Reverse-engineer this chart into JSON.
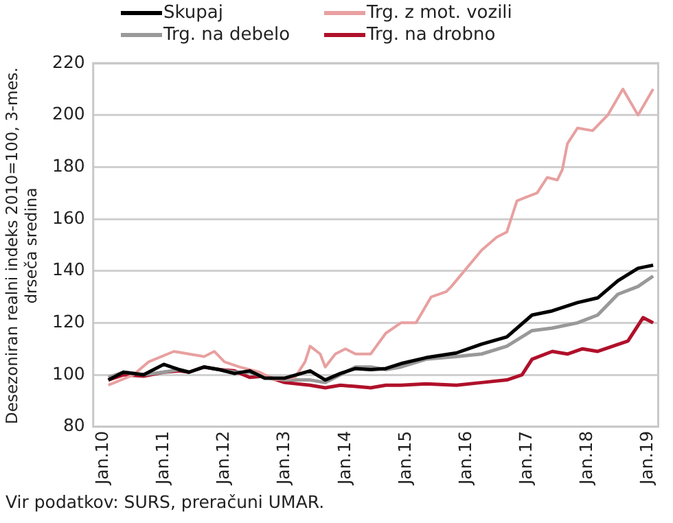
{
  "chart_data": {
    "type": "line",
    "ylabel": "Desezoniran realni indeks 2010=100, 3-mes. drseča sredina",
    "annotations": [
      "Vir podatkov: SURS, preračuni UMAR."
    ],
    "x": [
      "2010-02",
      "2010-05",
      "2010-09",
      "2011-01",
      "2011-04",
      "2011-06",
      "2011-09",
      "2011-12",
      "2012-03",
      "2012-06",
      "2012-09",
      "2013-01",
      "2013-06",
      "2013-09",
      "2013-12",
      "2014-03",
      "2014-06",
      "2014-09",
      "2014-12",
      "2015-05",
      "2015-11",
      "2016-04",
      "2016-09",
      "2017-02",
      "2017-06",
      "2017-11",
      "2018-03",
      "2018-07",
      "2018-11",
      "2019-02"
    ],
    "series": [
      {
        "name": "Skupaj",
        "color": "#000000",
        "values": [
          98,
          101,
          100,
          104,
          102,
          101,
          103,
          102,
          100.5,
          101.5,
          98.7,
          98.7,
          101.5,
          98,
          100.5,
          102.4,
          102,
          102.4,
          104.3,
          106.6,
          108.4,
          111.8,
          114.6,
          123,
          124.6,
          127.8,
          129.6,
          136.2,
          141,
          142.2
        ]
      },
      {
        "name": "Trg. z mot. vozili",
        "color": "#e8a0a0",
        "x": [
          "2010-02",
          "2010-07",
          "2010-10",
          "2011-03",
          "2011-09",
          "2011-11",
          "2012-01",
          "2012-04",
          "2012-08",
          "2012-11",
          "2013-03",
          "2013-05",
          "2013-06",
          "2013-08",
          "2013-09",
          "2013-11",
          "2014-01",
          "2014-03",
          "2014-06",
          "2014-09",
          "2014-12",
          "2015-03",
          "2015-06",
          "2015-09",
          "2015-10",
          "2016-04",
          "2016-07",
          "2016-09",
          "2016-11",
          "2017-03",
          "2017-05",
          "2017-07",
          "2017-08",
          "2017-09",
          "2017-11",
          "2018-02",
          "2018-05",
          "2018-08",
          "2018-11",
          "2019-02"
        ],
        "values": [
          96,
          100,
          105,
          109,
          107,
          109,
          105,
          103,
          101,
          98,
          99,
          105,
          111,
          108,
          103,
          108,
          110,
          108,
          108,
          116,
          120,
          120,
          130,
          132,
          134,
          148,
          153,
          155,
          167,
          170,
          176,
          175,
          179,
          189,
          195,
          194,
          200,
          210,
          200,
          210
        ]
      },
      {
        "name": "Trg. na debelo",
        "color": "#999999",
        "values": [
          99,
          101,
          100,
          101,
          102,
          101,
          103,
          102,
          101,
          101,
          99,
          98,
          98,
          97,
          100,
          103,
          103,
          102,
          103,
          106,
          107,
          108,
          111,
          117,
          118,
          120,
          123,
          131,
          134,
          138
        ]
      },
      {
        "name": "Trg. na drobno",
        "color": "#b0102a",
        "x": [
          "2010-02",
          "2010-05",
          "2010-09",
          "2011-01",
          "2011-04",
          "2011-06",
          "2011-09",
          "2011-12",
          "2012-03",
          "2012-06",
          "2012-09",
          "2013-01",
          "2013-06",
          "2013-09",
          "2013-12",
          "2014-03",
          "2014-06",
          "2014-09",
          "2014-12",
          "2015-05",
          "2015-11",
          "2016-04",
          "2016-09",
          "2016-12",
          "2017-02",
          "2017-06",
          "2017-09",
          "2017-12",
          "2018-03",
          "2018-06",
          "2018-09",
          "2018-12",
          "2019-02"
        ],
        "values": [
          98,
          100,
          99.5,
          101,
          101.5,
          101,
          103,
          102,
          101.5,
          99,
          99.5,
          97,
          96,
          95,
          96,
          95.5,
          95,
          96,
          96,
          96.5,
          96,
          97,
          98,
          100,
          106,
          109,
          108,
          110,
          109,
          111,
          113,
          122,
          120
        ]
      }
    ],
    "xlim": [
      "2009-11",
      "2019-03"
    ],
    "xticks": [
      {
        "value": "2010-01",
        "label": "Jan.10"
      },
      {
        "value": "2011-01",
        "label": "Jan.11"
      },
      {
        "value": "2012-01",
        "label": "Jan.12"
      },
      {
        "value": "2013-01",
        "label": "Jan.13"
      },
      {
        "value": "2014-01",
        "label": "Jan.14"
      },
      {
        "value": "2015-01",
        "label": "Jan.15"
      },
      {
        "value": "2016-01",
        "label": "Jan.16"
      },
      {
        "value": "2017-01",
        "label": "Jan.17"
      },
      {
        "value": "2018-01",
        "label": "Jan.18"
      },
      {
        "value": "2019-01",
        "label": "Jan.19"
      }
    ],
    "ylim": [
      80,
      220
    ],
    "yticks": [
      80,
      100,
      120,
      140,
      160,
      180,
      200,
      220
    ],
    "grid": "y",
    "legend": "top",
    "marker": "none",
    "line_style": "solid"
  }
}
